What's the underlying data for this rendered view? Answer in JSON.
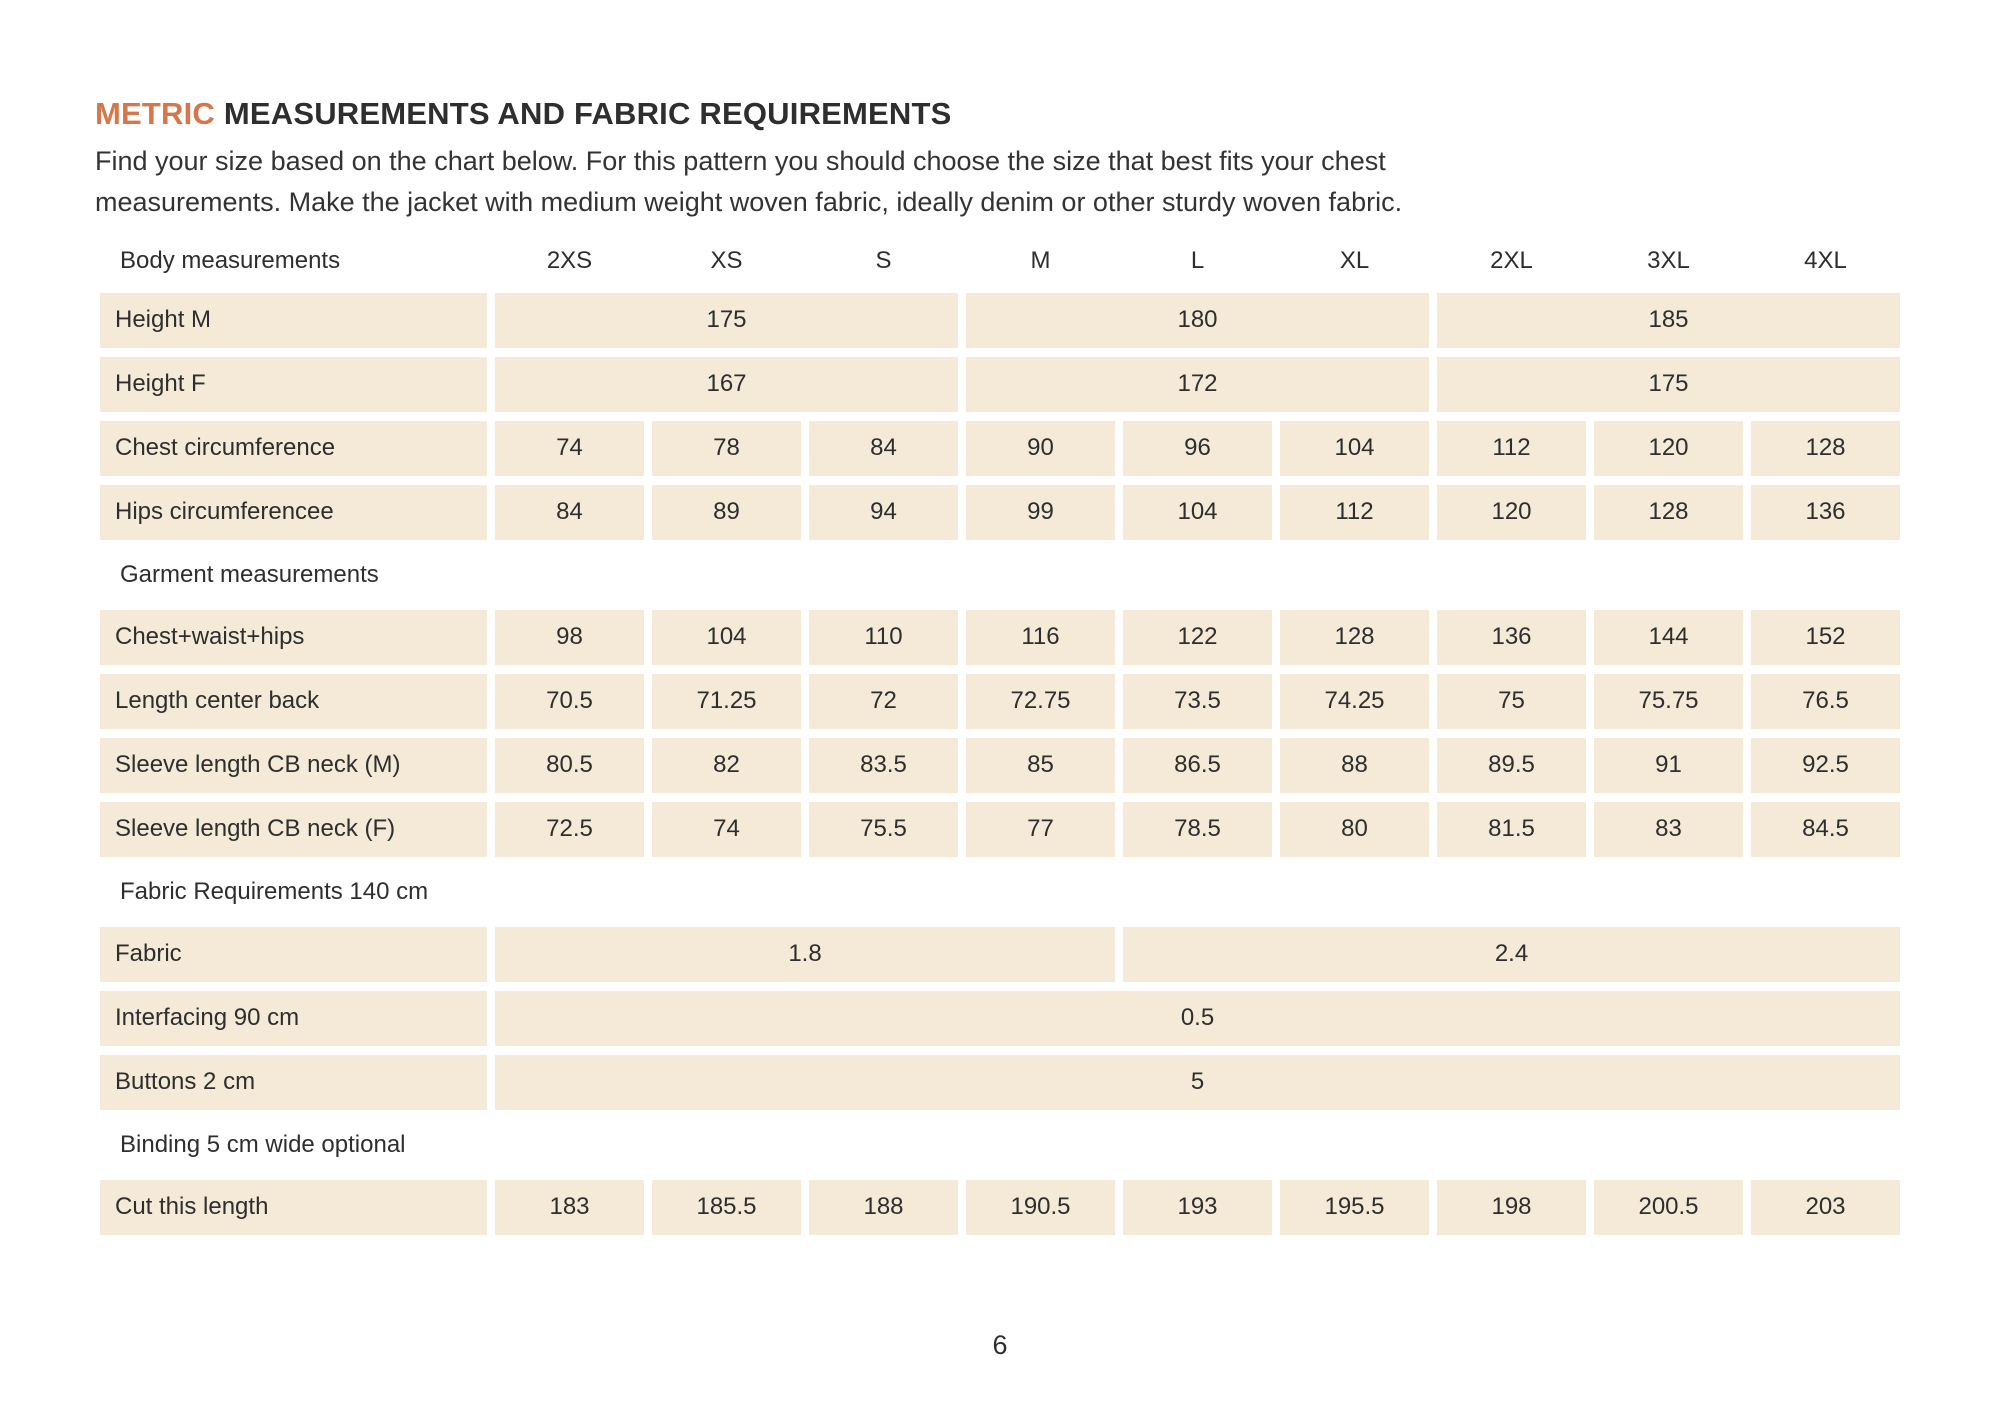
{
  "title": {
    "highlight": "METRIC",
    "rest": " MEASUREMENTS AND FABRIC REQUIREMENTS"
  },
  "intro_lines": [
    "Find your size based on the chart below. For this pattern you should choose the size that best fits your chest",
    "measurements. Make the jacket with medium weight woven fabric, ideally denim or other sturdy woven fabric."
  ],
  "colors": {
    "accent_orange": "#d5764b",
    "cell_beige": "#f4ead7",
    "text_dark": "#2e2e2e"
  },
  "table": {
    "header_label": "Body measurements",
    "size_columns": [
      "2XS",
      "XS",
      "S",
      "M",
      "L",
      "XL",
      "2XL",
      "3XL",
      "4XL"
    ],
    "blocks": [
      {
        "type": "row",
        "label": "Height M",
        "cells": [
          {
            "value": "175",
            "span": 3
          },
          {
            "value": "180",
            "span": 3
          },
          {
            "value": "185",
            "span": 3
          }
        ]
      },
      {
        "type": "row",
        "label": "Height F",
        "cells": [
          {
            "value": "167",
            "span": 3
          },
          {
            "value": "172",
            "span": 3
          },
          {
            "value": "175",
            "span": 3
          }
        ]
      },
      {
        "type": "row",
        "label": "Chest circumference",
        "cells": [
          {
            "value": "74",
            "span": 1
          },
          {
            "value": "78",
            "span": 1
          },
          {
            "value": "84",
            "span": 1
          },
          {
            "value": "90",
            "span": 1
          },
          {
            "value": "96",
            "span": 1
          },
          {
            "value": "104",
            "span": 1
          },
          {
            "value": "112",
            "span": 1
          },
          {
            "value": "120",
            "span": 1
          },
          {
            "value": "128",
            "span": 1
          }
        ]
      },
      {
        "type": "row",
        "label": "Hips circumferencee",
        "cells": [
          {
            "value": "84",
            "span": 1
          },
          {
            "value": "89",
            "span": 1
          },
          {
            "value": "94",
            "span": 1
          },
          {
            "value": "99",
            "span": 1
          },
          {
            "value": "104",
            "span": 1
          },
          {
            "value": "112",
            "span": 1
          },
          {
            "value": "120",
            "span": 1
          },
          {
            "value": "128",
            "span": 1
          },
          {
            "value": "136",
            "span": 1
          }
        ]
      },
      {
        "type": "section",
        "label": "Garment measurements"
      },
      {
        "type": "row",
        "label": "Chest+waist+hips",
        "cells": [
          {
            "value": "98",
            "span": 1
          },
          {
            "value": "104",
            "span": 1
          },
          {
            "value": "110",
            "span": 1
          },
          {
            "value": "116",
            "span": 1
          },
          {
            "value": "122",
            "span": 1
          },
          {
            "value": "128",
            "span": 1
          },
          {
            "value": "136",
            "span": 1
          },
          {
            "value": "144",
            "span": 1
          },
          {
            "value": "152",
            "span": 1
          }
        ]
      },
      {
        "type": "row",
        "label": "Length center back",
        "cells": [
          {
            "value": "70.5",
            "span": 1
          },
          {
            "value": "71.25",
            "span": 1
          },
          {
            "value": "72",
            "span": 1
          },
          {
            "value": "72.75",
            "span": 1
          },
          {
            "value": "73.5",
            "span": 1
          },
          {
            "value": "74.25",
            "span": 1
          },
          {
            "value": "75",
            "span": 1
          },
          {
            "value": "75.75",
            "span": 1
          },
          {
            "value": "76.5",
            "span": 1
          }
        ]
      },
      {
        "type": "row",
        "label": "Sleeve length CB neck (M)",
        "cells": [
          {
            "value": "80.5",
            "span": 1
          },
          {
            "value": "82",
            "span": 1
          },
          {
            "value": "83.5",
            "span": 1
          },
          {
            "value": "85",
            "span": 1
          },
          {
            "value": "86.5",
            "span": 1
          },
          {
            "value": "88",
            "span": 1
          },
          {
            "value": "89.5",
            "span": 1
          },
          {
            "value": "91",
            "span": 1
          },
          {
            "value": "92.5",
            "span": 1
          }
        ]
      },
      {
        "type": "row",
        "label": "Sleeve length CB neck (F)",
        "cells": [
          {
            "value": "72.5",
            "span": 1
          },
          {
            "value": "74",
            "span": 1
          },
          {
            "value": "75.5",
            "span": 1
          },
          {
            "value": "77",
            "span": 1
          },
          {
            "value": "78.5",
            "span": 1
          },
          {
            "value": "80",
            "span": 1
          },
          {
            "value": "81.5",
            "span": 1
          },
          {
            "value": "83",
            "span": 1
          },
          {
            "value": "84.5",
            "span": 1
          }
        ]
      },
      {
        "type": "section",
        "label": "Fabric Requirements 140 cm"
      },
      {
        "type": "row",
        "label": "Fabric",
        "cells": [
          {
            "value": "1.8",
            "span": 4
          },
          {
            "value": "2.4",
            "span": 5
          }
        ]
      },
      {
        "type": "row",
        "label": "Interfacing 90 cm",
        "cells": [
          {
            "value": "0.5",
            "span": 9
          }
        ]
      },
      {
        "type": "row",
        "label": "Buttons 2 cm",
        "cells": [
          {
            "value": "5",
            "span": 9
          }
        ]
      },
      {
        "type": "section",
        "label": "Binding 5 cm wide optional"
      },
      {
        "type": "row",
        "label": "Cut this length",
        "cells": [
          {
            "value": "183",
            "span": 1
          },
          {
            "value": "185.5",
            "span": 1
          },
          {
            "value": "188",
            "span": 1
          },
          {
            "value": "190.5",
            "span": 1
          },
          {
            "value": "193",
            "span": 1
          },
          {
            "value": "195.5",
            "span": 1
          },
          {
            "value": "198",
            "span": 1
          },
          {
            "value": "200.5",
            "span": 1
          },
          {
            "value": "203",
            "span": 1
          }
        ]
      }
    ]
  },
  "footer": {
    "page_number": "6"
  }
}
